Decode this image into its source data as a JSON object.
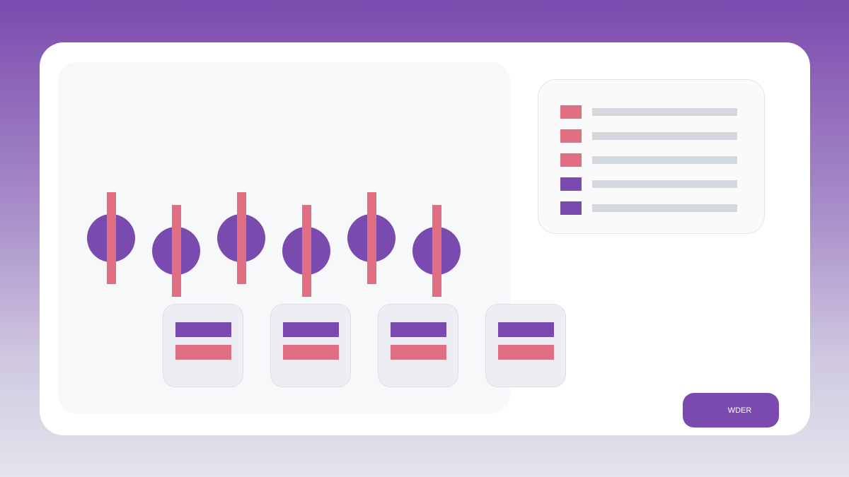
{
  "colors": {
    "primary": "#7b4aae",
    "accent": "#e06f84",
    "placeholder_line": "#d3d7de"
  },
  "knobs": [
    {
      "icon": "knob-slider-icon"
    },
    {
      "icon": "knob-slider-icon"
    },
    {
      "icon": "knob-slider-icon"
    },
    {
      "icon": "knob-slider-icon"
    },
    {
      "icon": "knob-slider-icon"
    },
    {
      "icon": "knob-slider-icon"
    }
  ],
  "tiles": [
    {
      "icon": "option-tile-icon"
    },
    {
      "icon": "option-tile-icon"
    },
    {
      "icon": "option-tile-icon"
    },
    {
      "icon": "option-tile-icon"
    }
  ],
  "legend": {
    "items": [
      {
        "color": "#e06f84"
      },
      {
        "color": "#e06f84"
      },
      {
        "color": "#e06f84"
      },
      {
        "color": "#7b4aae"
      },
      {
        "color": "#7b4aae"
      }
    ]
  },
  "action_button": {
    "label": "WDER"
  }
}
